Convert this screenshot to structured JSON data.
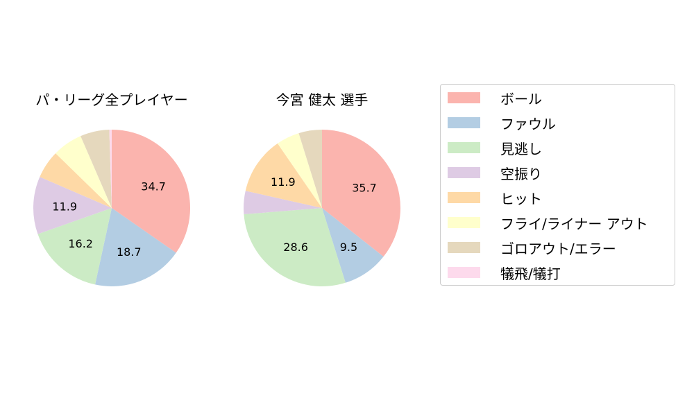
{
  "chart_data": [
    {
      "type": "pie",
      "title": "パ・リーグ全プレイヤー",
      "categories": [
        "ボール",
        "ファウル",
        "見逃し",
        "空振り",
        "ヒット",
        "フライ/ライナー アウト",
        "ゴロアウト/エラー",
        "犠飛/犠打"
      ],
      "values": [
        34.7,
        18.7,
        16.2,
        11.9,
        5.8,
        6.2,
        6.0,
        0.5
      ],
      "labels_shown": [
        "34.7",
        "18.7",
        "16.2",
        "11.9",
        "",
        "",
        "",
        ""
      ],
      "start_angle": 90,
      "direction": "clockwise"
    },
    {
      "type": "pie",
      "title": "今宮 健太  選手",
      "categories": [
        "ボール",
        "ファウル",
        "見逃し",
        "空振り",
        "ヒット",
        "フライ/ライナー アウト",
        "ゴロアウト/エラー",
        "犠飛/犠打"
      ],
      "values": [
        35.7,
        9.5,
        28.6,
        4.8,
        11.9,
        4.8,
        4.8,
        0
      ],
      "labels_shown": [
        "35.7",
        "9.5",
        "28.6",
        "",
        "11.9",
        "",
        "",
        ""
      ],
      "start_angle": 90,
      "direction": "clockwise"
    }
  ],
  "colors": [
    "#fbb4ae",
    "#b3cde3",
    "#ccebc5",
    "#decbe4",
    "#fed9a6",
    "#ffffcc",
    "#e5d8bd",
    "#fddaec"
  ],
  "legend": {
    "position": "right",
    "items": [
      "ボール",
      "ファウル",
      "見逃し",
      "空振り",
      "ヒット",
      "フライ/ライナー アウト",
      "ゴロアウト/エラー",
      "犠飛/犠打"
    ]
  }
}
